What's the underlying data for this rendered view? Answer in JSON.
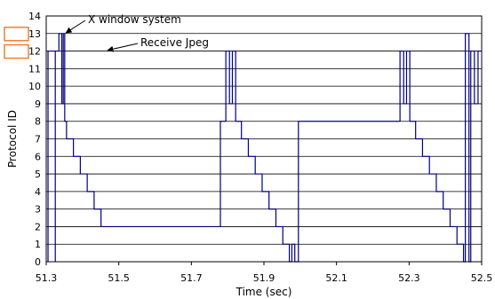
{
  "chart_data": {
    "type": "line",
    "title": "",
    "xlabel": "Time (sec)",
    "ylabel": "Protocol ID",
    "xlim": [
      51.3,
      52.5
    ],
    "ylim": [
      0,
      14
    ],
    "xticks": [
      "51.3",
      "51.5",
      "51.7",
      "51.9",
      "52.1",
      "52.3",
      "52.5"
    ],
    "yticks": [
      "0",
      "1",
      "2",
      "3",
      "4",
      "5",
      "6",
      "7",
      "8",
      "9",
      "10",
      "11",
      "12",
      "13",
      "14"
    ],
    "grid": "horizontal",
    "legend": "none",
    "line_color": "#000080",
    "highlight_color": "#f08030",
    "highlighted_ids": [
      13,
      12
    ],
    "annotations": [
      {
        "text": "X window system",
        "x": 51.35,
        "y": 13
      },
      {
        "text": "Receive Jpeg",
        "x": 51.47,
        "y": 12
      }
    ],
    "series": [
      {
        "points": [
          [
            51.305,
            0
          ],
          [
            51.305,
            1
          ],
          [
            51.305,
            2
          ],
          [
            51.305,
            3
          ],
          [
            51.305,
            4
          ],
          [
            51.305,
            5
          ],
          [
            51.305,
            6
          ],
          [
            51.305,
            7
          ],
          [
            51.305,
            8
          ],
          [
            51.305,
            9
          ],
          [
            51.305,
            10
          ],
          [
            51.305,
            11
          ],
          [
            51.305,
            12
          ],
          [
            51.325,
            12
          ],
          [
            51.325,
            0
          ],
          [
            51.325,
            12
          ],
          [
            51.335,
            12
          ],
          [
            51.335,
            13
          ],
          [
            51.343,
            13
          ],
          [
            51.343,
            9
          ],
          [
            51.347,
            9
          ],
          [
            51.347,
            13
          ],
          [
            51.351,
            13
          ],
          [
            51.351,
            8
          ],
          [
            51.356,
            8
          ],
          [
            51.356,
            7
          ],
          [
            51.375,
            7
          ],
          [
            51.375,
            6
          ],
          [
            51.394,
            6
          ],
          [
            51.394,
            5
          ],
          [
            51.413,
            5
          ],
          [
            51.413,
            4
          ],
          [
            51.432,
            4
          ],
          [
            51.432,
            3
          ],
          [
            51.451,
            3
          ],
          [
            51.451,
            2
          ],
          [
            51.78,
            2
          ],
          [
            51.78,
            8
          ],
          [
            51.795,
            8
          ],
          [
            51.795,
            12
          ],
          [
            51.805,
            12
          ],
          [
            51.805,
            9
          ],
          [
            51.813,
            9
          ],
          [
            51.813,
            12
          ],
          [
            51.822,
            12
          ],
          [
            51.822,
            8
          ],
          [
            51.838,
            8
          ],
          [
            51.838,
            7
          ],
          [
            51.857,
            7
          ],
          [
            51.857,
            6
          ],
          [
            51.876,
            6
          ],
          [
            51.876,
            5
          ],
          [
            51.895,
            5
          ],
          [
            51.895,
            4
          ],
          [
            51.914,
            4
          ],
          [
            51.914,
            3
          ],
          [
            51.933,
            3
          ],
          [
            51.933,
            2
          ],
          [
            51.952,
            2
          ],
          [
            51.952,
            1
          ],
          [
            51.97,
            1
          ],
          [
            51.97,
            0
          ],
          [
            51.977,
            0
          ],
          [
            51.977,
            1
          ],
          [
            51.985,
            1
          ],
          [
            51.985,
            0
          ],
          [
            51.995,
            0
          ],
          [
            51.995,
            8
          ],
          [
            52.275,
            8
          ],
          [
            52.275,
            12
          ],
          [
            52.285,
            12
          ],
          [
            52.285,
            9
          ],
          [
            52.293,
            9
          ],
          [
            52.293,
            12
          ],
          [
            52.302,
            12
          ],
          [
            52.302,
            8
          ],
          [
            52.318,
            8
          ],
          [
            52.318,
            7
          ],
          [
            52.337,
            7
          ],
          [
            52.337,
            6
          ],
          [
            52.356,
            6
          ],
          [
            52.356,
            5
          ],
          [
            52.375,
            5
          ],
          [
            52.375,
            4
          ],
          [
            52.394,
            4
          ],
          [
            52.394,
            3
          ],
          [
            52.413,
            3
          ],
          [
            52.413,
            2
          ],
          [
            52.432,
            2
          ],
          [
            52.432,
            1
          ],
          [
            52.45,
            1
          ],
          [
            52.45,
            0
          ],
          [
            52.455,
            0
          ],
          [
            52.455,
            13
          ],
          [
            52.465,
            13
          ],
          [
            52.465,
            0
          ],
          [
            52.47,
            0
          ],
          [
            52.47,
            12
          ],
          [
            52.48,
            12
          ],
          [
            52.48,
            9
          ],
          [
            52.49,
            9
          ],
          [
            52.49,
            12
          ],
          [
            52.5,
            12
          ]
        ]
      }
    ]
  }
}
